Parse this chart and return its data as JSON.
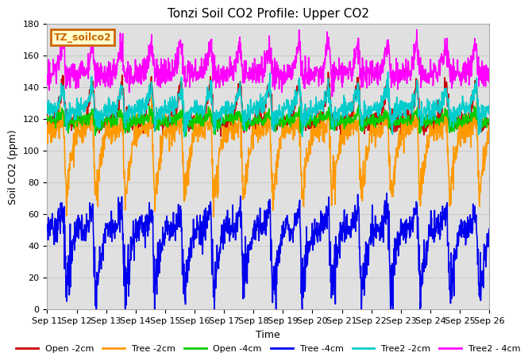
{
  "title": "Tonzi Soil CO2 Profile: Upper CO2",
  "ylabel": "Soil CO2 (ppm)",
  "xlabel": "Time",
  "ylim": [
    0,
    180
  ],
  "yticks": [
    0,
    20,
    40,
    60,
    80,
    100,
    120,
    140,
    160,
    180
  ],
  "series_order": [
    "Open -2cm",
    "Tree -2cm",
    "Open -4cm",
    "Tree -4cm",
    "Tree2 -2cm",
    "Tree2 - 4cm"
  ],
  "series": {
    "Open -2cm": {
      "color": "#cc0000",
      "lw": 1.2
    },
    "Tree -2cm": {
      "color": "#ff9900",
      "lw": 1.2
    },
    "Open -4cm": {
      "color": "#00cc00",
      "lw": 1.2
    },
    "Tree -4cm": {
      "color": "#0000ee",
      "lw": 1.2
    },
    "Tree2 -2cm": {
      "color": "#00cccc",
      "lw": 1.2
    },
    "Tree2 - 4cm": {
      "color": "#ff00ff",
      "lw": 1.2
    }
  },
  "legend_label": "TZ_soilco2",
  "legend_bg": "#ffffcc",
  "legend_border": "#cc6600",
  "grid_color": "#cccccc",
  "bg_color": "#e0e0e0",
  "n_days": 15,
  "pts_per_day": 96,
  "series_params": {
    "Open -2cm": {
      "base": 118,
      "peak": 144,
      "trough": 118,
      "noise": 3,
      "dip_noise": 2
    },
    "Tree -2cm": {
      "base": 112,
      "peak": 120,
      "trough": 70,
      "noise": 4,
      "dip_noise": 5
    },
    "Open -4cm": {
      "base": 119,
      "peak": 124,
      "trough": 115,
      "noise": 2,
      "dip_noise": 2
    },
    "Tree -4cm": {
      "base": 50,
      "peak": 63,
      "trough": 10,
      "noise": 5,
      "dip_noise": 8
    },
    "Tree2 -2cm": {
      "base": 126,
      "peak": 140,
      "trough": 118,
      "noise": 3,
      "dip_noise": 3
    },
    "Tree2 - 4cm": {
      "base": 148,
      "peak": 168,
      "trough": 147,
      "noise": 4,
      "dip_noise": 3
    }
  },
  "xtick_labels": [
    "Sep 11",
    "Sep 12",
    "Sep 13",
    "Sep 14",
    "Sep 15",
    "Sep 16",
    "Sep 17",
    "Sep 18",
    "Sep 19",
    "Sep 20",
    "Sep 21",
    "Sep 22",
    "Sep 23",
    "Sep 24",
    "Sep 25",
    "Sep 26"
  ],
  "title_fontsize": 11,
  "axis_fontsize": 9,
  "tick_fontsize": 8
}
